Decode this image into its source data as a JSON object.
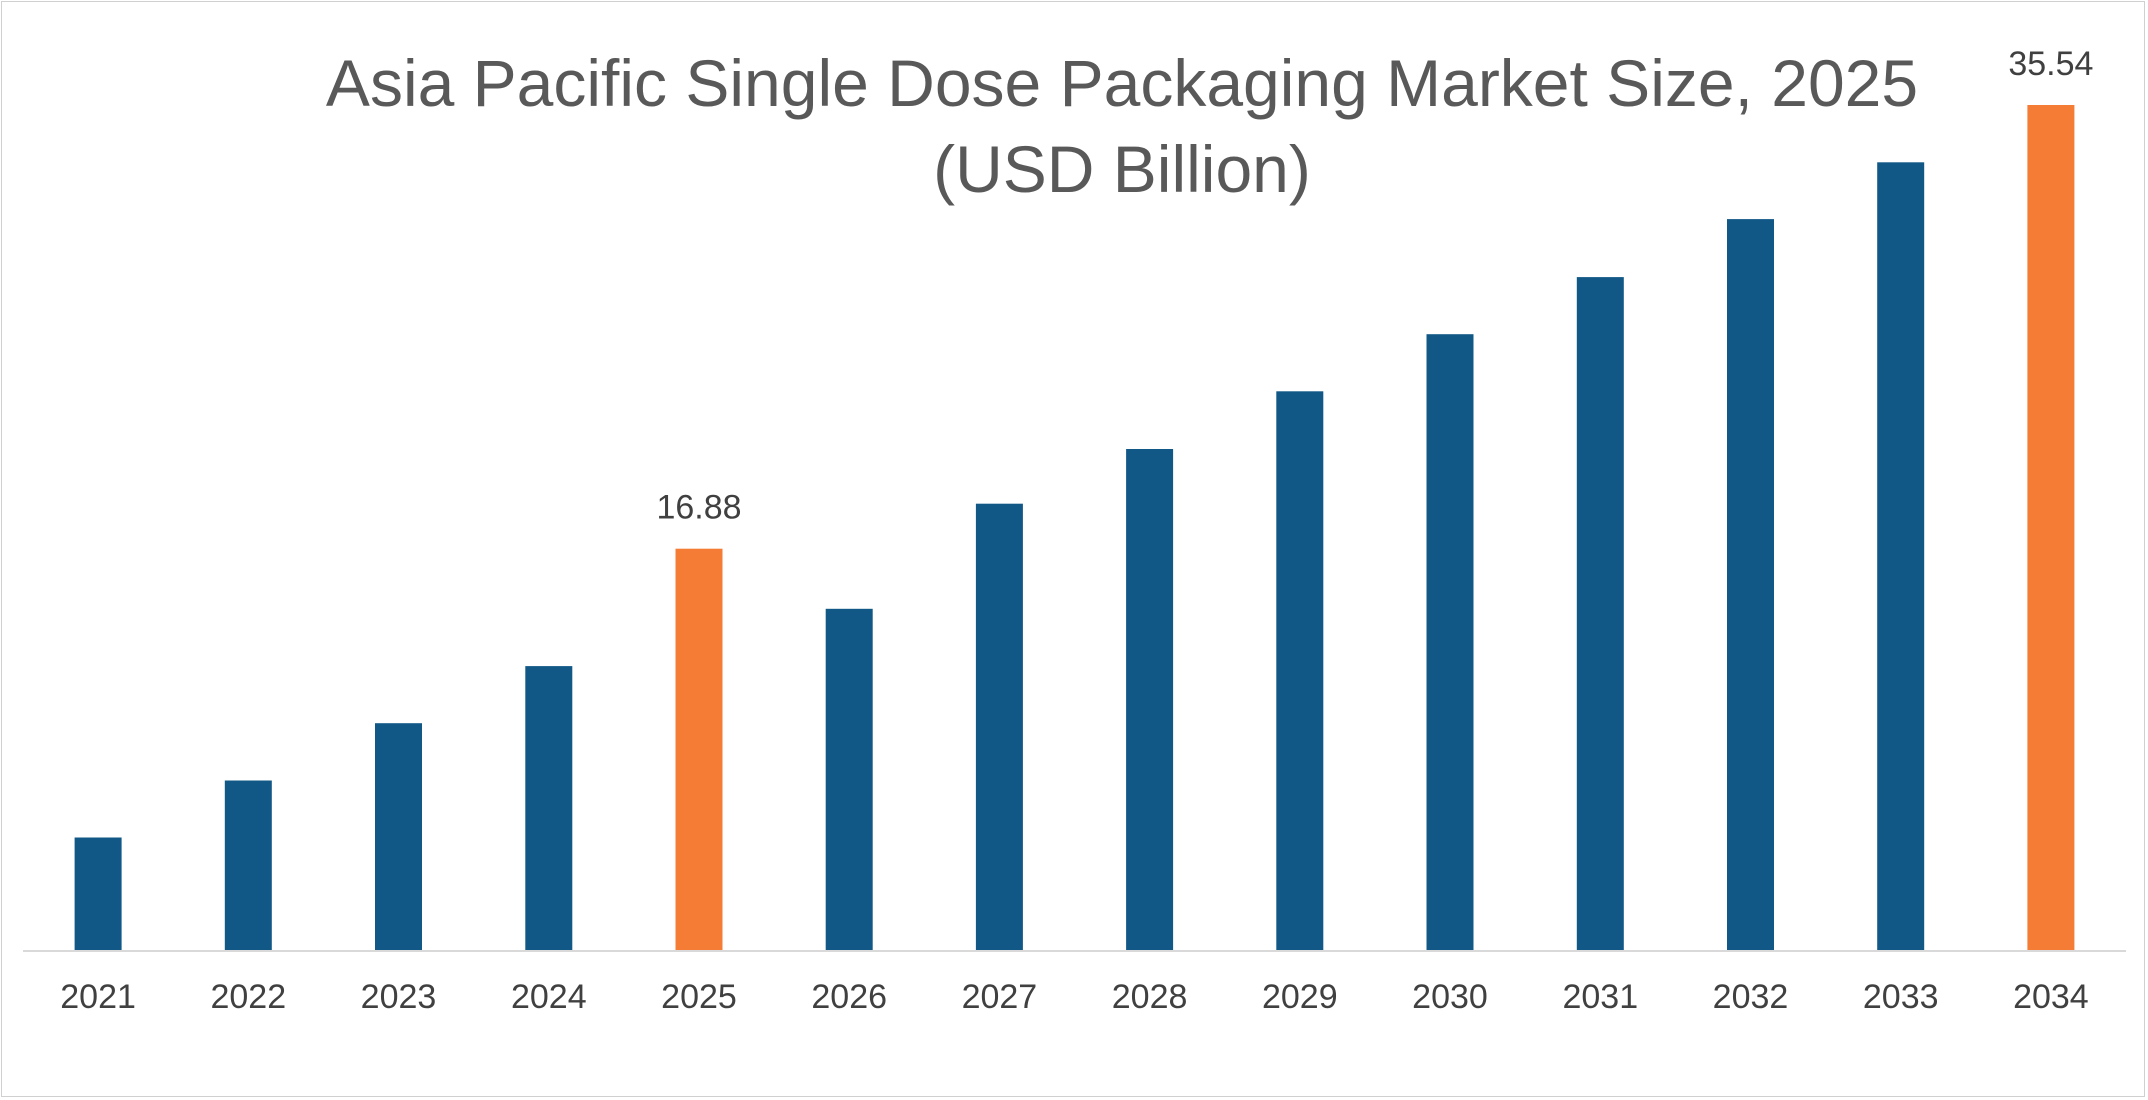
{
  "chart_data": {
    "type": "bar",
    "title_line1": "Asia Pacific Single Dose Packaging Market Size, 2025",
    "title_line2": "(USD Billion)",
    "xlabel": "",
    "ylabel": "",
    "categories": [
      "2021",
      "2022",
      "2023",
      "2024",
      "2025",
      "2026",
      "2027",
      "2028",
      "2029",
      "2030",
      "2031",
      "2032",
      "2033",
      "2034"
    ],
    "values": [
      4.73,
      7.13,
      9.54,
      11.94,
      16.88,
      14.35,
      18.77,
      21.07,
      23.5,
      25.9,
      28.3,
      30.74,
      33.13,
      35.54
    ],
    "data_labels": {
      "2025": "16.88",
      "2034": "35.54"
    },
    "highlight_categories": [
      "2025",
      "2034"
    ],
    "colors": {
      "bar": "#125886",
      "highlight": "#f47c34",
      "axis": "#d9d9d9",
      "text": "#404040",
      "title": "#595959"
    },
    "ylim": [
      0,
      35.54
    ],
    "grid": false,
    "legend": "none"
  }
}
